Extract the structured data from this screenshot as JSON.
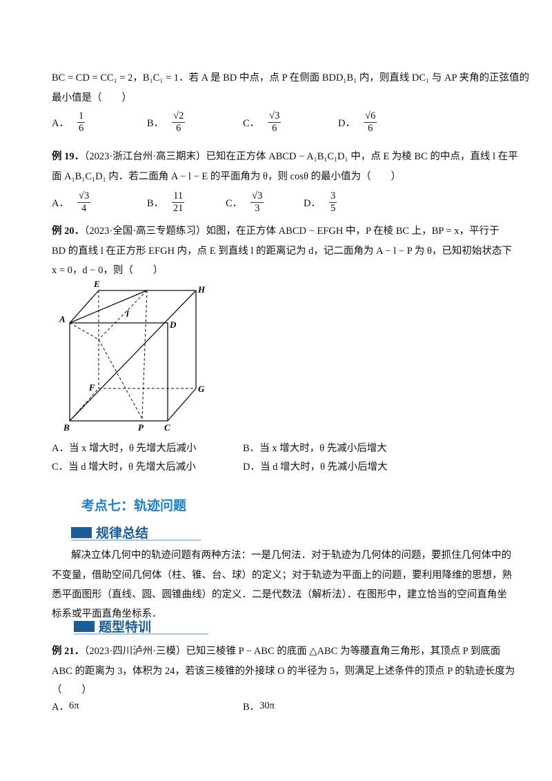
{
  "q18": {
    "lines": [
      "BC = CD = CC₁ = 2，B₁C₁ = 1．若 A 是 BD 中点，点 P 在侧面 BDD₁B₁ 内，则直线 DC₁ 与 AP 夹角的正弦值的",
      "最小值是（　　）"
    ],
    "options": [
      {
        "label": "A．",
        "num": "1",
        "den": "6"
      },
      {
        "label": "B．",
        "num": "√2",
        "den": "6"
      },
      {
        "label": "C．",
        "num": "√3",
        "den": "6"
      },
      {
        "label": "D．",
        "num": "√6",
        "den": "6"
      }
    ]
  },
  "q19": {
    "number": "例 19．",
    "lines": [
      "（2023·浙江台州·高三期末）已知在正方体 ABCD − A₁B₁C₁D₁ 中，点 E 为棱 BC 的中点，直线 l 在平",
      "面 A₁B₁C₁D₁ 内．若二面角 A − l − E 的平面角为 θ，则 cosθ 的最小值为（　　）"
    ],
    "options": [
      {
        "label": "A．",
        "num": "√3",
        "den": "4"
      },
      {
        "label": "B．",
        "num": "11",
        "den": "21"
      },
      {
        "label": "C．",
        "num": "√3",
        "den": "3"
      },
      {
        "label": "D．",
        "num": "3",
        "den": "5"
      }
    ]
  },
  "q20": {
    "number": "例 20．",
    "lines": [
      "（2023·全国·高三专题练习）如图，在正方体 ABCD − EFGH 中，P 在棱 BC 上，BP = x，平行于",
      "BD 的直线 l 在正方形 EFGH 内，点 E 到直线 l 的距离记为 d，记二面角为 A − l − P 为 θ，已知初始状态下",
      "x = 0，d − 0，则（　　）"
    ],
    "figure_labels": {
      "A": "A",
      "B": "B",
      "C": "C",
      "D": "D",
      "E": "E",
      "F": "F",
      "G": "G",
      "H": "H",
      "P": "P",
      "l": "l"
    },
    "options": [
      {
        "label": "A．",
        "text": "当 x 增大时，θ 先增大后减小"
      },
      {
        "label": "B．",
        "text": "当 x 增大时，θ 先减小后增大"
      },
      {
        "label": "C．",
        "text": "当 d 增大时，θ 先增大后减小"
      },
      {
        "label": "D．",
        "text": "当 d 增大时，θ 先减小后增大"
      }
    ]
  },
  "section": {
    "title": "考点七：轨迹问题",
    "banner1": "规律总结",
    "paragraph": [
      "解决立体几何中的轨迹问题有两种方法：一是几何法．对于轨迹为几何体的问题，要抓住几何体中的",
      "不变量，借助空间几何体（柱、锥、台、球）的定义；对于轨迹为平面上的问题，要利用降维的思想，熟",
      "悉平面图形（直线、圆、圆锥曲线）的定义．二是代数法（解析法）．在图形中，建立恰当的空间直角坐",
      "标系或平面直角坐标系．"
    ],
    "banner2": "题型特训",
    "accent_color": "#1a7fd0",
    "banner_color": "#1b5c99"
  },
  "q21": {
    "number": "例 21．",
    "lines": [
      "（2023·四川泸州·三模）已知三棱锥 P − ABC 的底面 △ABC 为等腰直角三角形，其顶点 P 到底面",
      "ABC 的距离为 3，体积为 24，若该三棱锥的外接球 O 的半径为 5，则满足上述条件的顶点 P 的轨迹长度为",
      "（　　）"
    ],
    "options": [
      {
        "label": "A．",
        "text": "6π"
      },
      {
        "label": "B．",
        "text": "30π"
      }
    ]
  }
}
